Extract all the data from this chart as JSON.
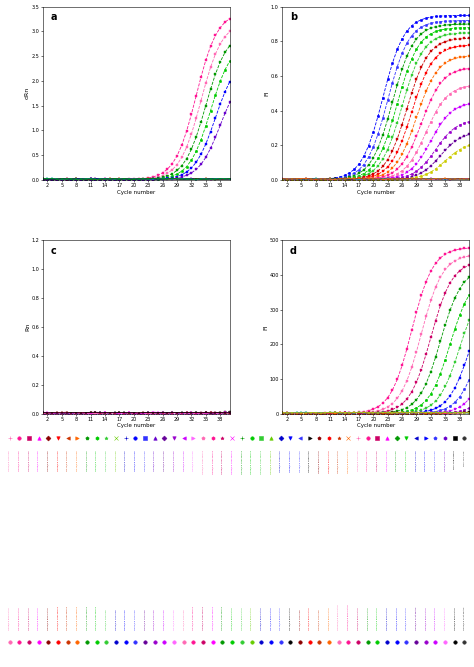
{
  "panel_a": {
    "label": "a",
    "ylabel": "dRn",
    "xlabel": "Cycle number",
    "ylim": [
      0.0,
      3.5
    ],
    "yticks": [
      0.0,
      0.5,
      1.0,
      1.5,
      2.0,
      2.5,
      3.0,
      3.5
    ],
    "xticks": [
      2,
      5,
      8,
      11,
      14,
      17,
      20,
      23,
      26,
      29,
      32,
      35,
      38
    ],
    "series": [
      {
        "color": "#FF1493",
        "midpoint": 33,
        "amplitude": 3.4,
        "marker": "s"
      },
      {
        "color": "#FF69B4",
        "midpoint": 34,
        "amplitude": 3.2,
        "marker": "s"
      },
      {
        "color": "#009900",
        "midpoint": 35,
        "amplitude": 3.0,
        "marker": "s"
      },
      {
        "color": "#00CC00",
        "midpoint": 36,
        "amplitude": 2.8,
        "marker": "o"
      },
      {
        "color": "#0000FF",
        "midpoint": 37,
        "amplitude": 2.5,
        "marker": "s"
      },
      {
        "color": "#6600CC",
        "midpoint": 38,
        "amplitude": 2.2,
        "marker": "s"
      }
    ],
    "flat_series": [
      {
        "color": "#CC00CC",
        "marker": "+"
      },
      {
        "color": "#FF00FF",
        "marker": "+"
      },
      {
        "color": "#CC0066",
        "marker": "+"
      },
      {
        "color": "#990099",
        "marker": "+"
      },
      {
        "color": "#FF6600",
        "marker": "+"
      },
      {
        "color": "#CC3300",
        "marker": "+"
      },
      {
        "color": "#8B0000",
        "marker": "+"
      },
      {
        "color": "#000000",
        "marker": "+"
      },
      {
        "color": "#333333",
        "marker": "+"
      },
      {
        "color": "#0000AA",
        "marker": "+"
      },
      {
        "color": "#00AAAA",
        "marker": "+"
      },
      {
        "color": "#008800",
        "marker": "+"
      }
    ]
  },
  "panel_b": {
    "label": "b",
    "ylabel": "Fl",
    "xlabel": "Cycle number",
    "ylim": [
      0.0,
      1.0
    ],
    "yticks": [
      0.0,
      0.2,
      0.4,
      0.6,
      0.8,
      1.0
    ],
    "xticks": [
      2,
      5,
      8,
      11,
      14,
      17,
      20,
      23,
      26,
      29,
      32,
      35,
      38
    ],
    "series": [
      {
        "color": "#0000FF",
        "midpoint": 22,
        "amplitude": 0.95,
        "marker": "o"
      },
      {
        "color": "#3333FF",
        "midpoint": 23,
        "amplitude": 0.92,
        "marker": "o"
      },
      {
        "color": "#009900",
        "midpoint": 24,
        "amplitude": 0.9,
        "marker": "s"
      },
      {
        "color": "#00CC00",
        "midpoint": 25,
        "amplitude": 0.88,
        "marker": "o"
      },
      {
        "color": "#33CC33",
        "midpoint": 26,
        "amplitude": 0.85,
        "marker": "s"
      },
      {
        "color": "#CC0000",
        "midpoint": 27,
        "amplitude": 0.82,
        "marker": "s"
      },
      {
        "color": "#FF0000",
        "midpoint": 28,
        "amplitude": 0.78,
        "marker": "s"
      },
      {
        "color": "#FF6600",
        "midpoint": 29,
        "amplitude": 0.72,
        "marker": "s"
      },
      {
        "color": "#FF1493",
        "midpoint": 30,
        "amplitude": 0.65,
        "marker": "s"
      },
      {
        "color": "#FF69B4",
        "midpoint": 31,
        "amplitude": 0.55,
        "marker": "o"
      },
      {
        "color": "#CC00FF",
        "midpoint": 32,
        "amplitude": 0.45,
        "marker": "s"
      },
      {
        "color": "#9900CC",
        "midpoint": 33,
        "amplitude": 0.35,
        "marker": "o"
      },
      {
        "color": "#660099",
        "midpoint": 34,
        "amplitude": 0.28,
        "marker": "s"
      },
      {
        "color": "#CCCC00",
        "midpoint": 35,
        "amplitude": 0.22,
        "marker": "o"
      }
    ],
    "flat_series": [
      {
        "color": "#CC00CC",
        "marker": "+"
      },
      {
        "color": "#FF00FF",
        "marker": "+"
      },
      {
        "color": "#8B0000",
        "marker": "+"
      },
      {
        "color": "#000000",
        "marker": "+"
      },
      {
        "color": "#00AAAA",
        "marker": "+"
      },
      {
        "color": "#FF6600",
        "marker": "+"
      }
    ]
  },
  "panel_c": {
    "label": "c",
    "ylabel": "Rn",
    "xlabel": "Cycle number",
    "ylim": [
      0.0,
      1.2
    ],
    "yticks": [
      0.0,
      0.2,
      0.4,
      0.6,
      0.8,
      1.0,
      1.2
    ],
    "xticks": [
      2,
      5,
      8,
      11,
      14,
      17,
      20,
      23,
      26,
      29,
      32,
      35,
      38
    ],
    "series": [
      {
        "color": "#000000",
        "midpoint": 50,
        "amplitude": 1.2,
        "marker": "s"
      },
      {
        "color": "#FF1493",
        "midpoint": 52,
        "amplitude": 1.2,
        "marker": "s"
      },
      {
        "color": "#CC0066",
        "midpoint": 54,
        "amplitude": 1.2,
        "marker": "s"
      },
      {
        "color": "#009900",
        "midpoint": 56,
        "amplitude": 1.2,
        "marker": "s"
      },
      {
        "color": "#00CC00",
        "midpoint": 58,
        "amplitude": 1.2,
        "marker": "o"
      },
      {
        "color": "#33CC33",
        "midpoint": 60,
        "amplitude": 1.2,
        "marker": "s"
      },
      {
        "color": "#0000FF",
        "midpoint": 62,
        "amplitude": 1.2,
        "marker": "s"
      },
      {
        "color": "#3333FF",
        "midpoint": 64,
        "amplitude": 1.2,
        "marker": "o"
      },
      {
        "color": "#CC00FF",
        "midpoint": 66,
        "amplitude": 1.2,
        "marker": "s"
      },
      {
        "color": "#FF69B4",
        "midpoint": 68,
        "amplitude": 1.2,
        "marker": "s"
      }
    ],
    "flat_series": [
      {
        "color": "#CC00CC",
        "marker": "+"
      },
      {
        "color": "#FF00FF",
        "marker": "+"
      },
      {
        "color": "#8B0000",
        "marker": "+"
      },
      {
        "color": "#000000",
        "marker": "+"
      }
    ]
  },
  "panel_d": {
    "label": "d",
    "ylabel": "Fl",
    "xlabel": "Cycle number",
    "ylim": [
      0.0,
      500
    ],
    "yticks": [
      0,
      100,
      200,
      300,
      400,
      500
    ],
    "xticks": [
      2,
      5,
      8,
      11,
      14,
      17,
      20,
      23,
      26,
      29,
      32,
      35,
      38
    ],
    "series": [
      {
        "color": "#FF1493",
        "midpoint": 28,
        "amplitude": 480,
        "marker": "s"
      },
      {
        "color": "#FF69B4",
        "midpoint": 30,
        "amplitude": 460,
        "marker": "s"
      },
      {
        "color": "#CC0066",
        "midpoint": 32,
        "amplitude": 440,
        "marker": "s"
      },
      {
        "color": "#009900",
        "midpoint": 34,
        "amplitude": 420,
        "marker": "s"
      },
      {
        "color": "#00CC00",
        "midpoint": 36,
        "amplitude": 400,
        "marker": "o"
      },
      {
        "color": "#33CC33",
        "midpoint": 38,
        "amplitude": 380,
        "marker": "s"
      },
      {
        "color": "#0000FF",
        "midpoint": 40,
        "amplitude": 360,
        "marker": "s"
      },
      {
        "color": "#3333FF",
        "midpoint": 42,
        "amplitude": 340,
        "marker": "o"
      },
      {
        "color": "#CC00FF",
        "midpoint": 44,
        "amplitude": 300,
        "marker": "s"
      },
      {
        "color": "#9900CC",
        "midpoint": 46,
        "amplitude": 250,
        "marker": "o"
      },
      {
        "color": "#000000",
        "midpoint": 48,
        "amplitude": 200,
        "marker": "s"
      },
      {
        "color": "#FF6600",
        "midpoint": 50,
        "amplitude": 150,
        "marker": "s"
      }
    ],
    "flat_series": [
      {
        "color": "#CC00CC",
        "marker": "+"
      },
      {
        "color": "#8B0000",
        "marker": "+"
      },
      {
        "color": "#00AAAA",
        "marker": "+"
      },
      {
        "color": "#CCCC00",
        "marker": "+"
      }
    ]
  },
  "legend_row1_items": [
    {
      "label": "G161/18 Ven-Cy5",
      "color": "#FF69B4",
      "marker": "+"
    },
    {
      "label": "G162/18 Ven-Cy5",
      "color": "#FF1493",
      "marker": "o"
    },
    {
      "label": "G164/18 Ven-Cy5",
      "color": "#CC0066",
      "marker": "s"
    },
    {
      "label": "G165/18 Ven-Cy5",
      "color": "#FF00FF",
      "marker": "^"
    },
    {
      "label": "G166/18 Ven-Cy5",
      "color": "#8B0000",
      "marker": "D"
    },
    {
      "label": "G168/18 Ven-Cy5",
      "color": "#FF0000",
      "marker": "v"
    },
    {
      "label": "G171/18 Ven-Cy5",
      "color": "#CC3300",
      "marker": "<"
    },
    {
      "label": "G172/18 Ven-Cy5",
      "color": "#FF6600",
      "marker": ">"
    },
    {
      "label": "G300/18 Ven-Cy5",
      "color": "#009900",
      "marker": "p"
    },
    {
      "label": "G302/18 Ven-Cy5",
      "color": "#00CC00",
      "marker": "h"
    },
    {
      "label": "G303/18 Ven-Cy5",
      "color": "#33CC33",
      "marker": "*"
    },
    {
      "label": "G353/18 Ven-Cy5",
      "color": "#66CC00",
      "marker": "x"
    },
    {
      "label": "G400/18 Ven-Cy5",
      "color": "#0000CC",
      "marker": "+"
    },
    {
      "label": "G404/18 Ven-Cy5",
      "color": "#0000FF",
      "marker": "o"
    },
    {
      "label": "G406/18 Ven-Cy5",
      "color": "#3333FF",
      "marker": "s"
    },
    {
      "label": "G408/18 Ven-Cy5",
      "color": "#6600CC",
      "marker": "^"
    },
    {
      "label": "G420/18 Ven-Cy5",
      "color": "#660099",
      "marker": "D"
    },
    {
      "label": "G461/18 Ven-Cy5",
      "color": "#9900CC",
      "marker": "v"
    },
    {
      "label": "G463/18 Ven-Cy5",
      "color": "#CC00FF",
      "marker": "<"
    },
    {
      "label": "G464/18 Ven-Cy5",
      "color": "#FF66FF",
      "marker": ">"
    },
    {
      "label": "G293/18 CoB-Tamra",
      "color": "#FF69B4",
      "marker": "p"
    },
    {
      "label": "G296/18 CoB-Tamra",
      "color": "#FF1493",
      "marker": "h"
    },
    {
      "label": "G298/18 CoB-Tamra",
      "color": "#CC0066",
      "marker": "*"
    },
    {
      "label": "G299/18 CoB-Tamra",
      "color": "#FF00FF",
      "marker": "x"
    },
    {
      "label": "G303/18 CoB-Tamra",
      "color": "#009900",
      "marker": "+"
    },
    {
      "label": "G305/18 CoB-Tamra",
      "color": "#00CC00",
      "marker": "o"
    },
    {
      "label": "G334/18 CoB-Tamra",
      "color": "#33CC33",
      "marker": "s"
    },
    {
      "label": "G353/18 CoB-Tamra",
      "color": "#66CC00",
      "marker": "^"
    },
    {
      "label": "G335/18 CoB-FAM",
      "color": "#0000CC",
      "marker": "D"
    },
    {
      "label": "G338/18 CoB-FAM",
      "color": "#0000FF",
      "marker": "v"
    },
    {
      "label": "G345/18 CoB-FAM",
      "color": "#3333FF",
      "marker": "<"
    },
    {
      "label": "G350/18 CoB-FAM",
      "color": "#000000",
      "marker": ">"
    },
    {
      "label": "G285/18 Boas-FAM",
      "color": "#8B0000",
      "marker": "p"
    },
    {
      "label": "G288/18 Boas-FAM",
      "color": "#FF0000",
      "marker": "h"
    },
    {
      "label": "G293/18 Boas-FAM",
      "color": "#CC3300",
      "marker": "*"
    },
    {
      "label": "G294/18 Boas-FAM",
      "color": "#FF6600",
      "marker": "x"
    },
    {
      "label": "G296/18 Ven-Cy5",
      "color": "#FF69B4",
      "marker": "+"
    },
    {
      "label": "G297/18 Ven-Cy5",
      "color": "#FF1493",
      "marker": "o"
    },
    {
      "label": "G298/18 Ven-Cy5",
      "color": "#CC0066",
      "marker": "s"
    },
    {
      "label": "G300/18 Ven-Cy5",
      "color": "#FF00FF",
      "marker": "^"
    },
    {
      "label": "G302/18 Ven-Cy5",
      "color": "#009900",
      "marker": "D"
    },
    {
      "label": "G303/18 Ven-Cy5",
      "color": "#00CC00",
      "marker": "v"
    },
    {
      "label": "G321/18 Ven-Cy5",
      "color": "#0000CC",
      "marker": "<"
    },
    {
      "label": "G322/18 Ven-Cy5",
      "color": "#0000FF",
      "marker": ">"
    },
    {
      "label": "G331/18 Ven-Cy5",
      "color": "#3333FF",
      "marker": "p"
    },
    {
      "label": "G334/18 Ven-Cy5",
      "color": "#6600CC",
      "marker": "h"
    },
    {
      "label": "NTC CoB-Tamra",
      "color": "#000000",
      "marker": "s"
    },
    {
      "label": "NTC Ven-Cy5",
      "color": "#333333",
      "marker": "o"
    }
  ],
  "legend_row2_items": [
    {
      "label": "G268/18 Boas-FAM",
      "color": "#FF69B4",
      "marker": "o"
    },
    {
      "label": "G270/18 Boas-FAM",
      "color": "#FF1493",
      "marker": "o"
    },
    {
      "label": "G277/18 Boas-FAM",
      "color": "#CC0066",
      "marker": "o"
    },
    {
      "label": "G302/18 Boas-FAM",
      "color": "#FF00FF",
      "marker": "o"
    },
    {
      "label": "G303/18 Boas-FAM",
      "color": "#8B0000",
      "marker": "o"
    },
    {
      "label": "G303/18 CoB-Tamra",
      "color": "#FF0000",
      "marker": "o"
    },
    {
      "label": "G273/18 CoB-Tamra",
      "color": "#CC3300",
      "marker": "o"
    },
    {
      "label": "G275/18 CoB-Tamra",
      "color": "#FF6600",
      "marker": "o"
    },
    {
      "label": "G277/18 CoB-Tamra",
      "color": "#009900",
      "marker": "o"
    },
    {
      "label": "G302/18 CoB-Tamra",
      "color": "#00CC00",
      "marker": "o"
    },
    {
      "label": "G303/18 Ven-Cy5",
      "color": "#33CC33",
      "marker": "o"
    },
    {
      "label": "G302/18 Ven-Cy5",
      "color": "#0000CC",
      "marker": "o"
    },
    {
      "label": "G303/18 Ven-Cy5",
      "color": "#0000FF",
      "marker": "o"
    },
    {
      "label": "G321/18 Ven-Cy5",
      "color": "#3333FF",
      "marker": "o"
    },
    {
      "label": "G161/18 Ven-Cy5",
      "color": "#660099",
      "marker": "o"
    },
    {
      "label": "G164/18 Ven-Cy5",
      "color": "#9900CC",
      "marker": "o"
    },
    {
      "label": "G168/18 Ven-Cy5",
      "color": "#CC00FF",
      "marker": "o"
    },
    {
      "label": "G171/18 Ven-Cy5",
      "color": "#FF66FF",
      "marker": "o"
    },
    {
      "label": "G172/18 Ven-Cy5",
      "color": "#FF69B4",
      "marker": "o"
    },
    {
      "label": "G274/18 CoB-Tamra",
      "color": "#FF1493",
      "marker": "o"
    },
    {
      "label": "G285/18 CoB-Tamra",
      "color": "#CC0066",
      "marker": "o"
    },
    {
      "label": "G300/18 CoB-Tamra",
      "color": "#FF00FF",
      "marker": "o"
    },
    {
      "label": "G161/18 CoB-Tamra",
      "color": "#009900",
      "marker": "o"
    },
    {
      "label": "G162/18 Boas-FAM",
      "color": "#00CC00",
      "marker": "o"
    },
    {
      "label": "G164/18 Boas-FAM",
      "color": "#33CC33",
      "marker": "o"
    },
    {
      "label": "G165/18 Boas-FAM",
      "color": "#66CC00",
      "marker": "o"
    },
    {
      "label": "G168/18 Boas-FAM",
      "color": "#0000CC",
      "marker": "o"
    },
    {
      "label": "G171/18 Boas-FAM",
      "color": "#0000FF",
      "marker": "o"
    },
    {
      "label": "G172/18 Boas-FAM",
      "color": "#3333FF",
      "marker": "o"
    },
    {
      "label": "G174/18 Boas-FAM",
      "color": "#000000",
      "marker": "o"
    },
    {
      "label": "G174/18 Ven-Cy5",
      "color": "#8B0000",
      "marker": "o"
    },
    {
      "label": "G173/18 Boas-FAM",
      "color": "#FF0000",
      "marker": "o"
    },
    {
      "label": "G162/18 Ven-Cy5",
      "color": "#CC3300",
      "marker": "o"
    },
    {
      "label": "G163/18 Boas-FAM",
      "color": "#FF6600",
      "marker": "o"
    },
    {
      "label": "G16401/18 Boas-FAM",
      "color": "#FF69B4",
      "marker": "o"
    },
    {
      "label": "G16402/18 Boas-FAM",
      "color": "#FF1493",
      "marker": "o"
    },
    {
      "label": "G400/18 Boas-FAM",
      "color": "#CC0066",
      "marker": "o"
    },
    {
      "label": "G401/18 Boas-FAM",
      "color": "#009900",
      "marker": "o"
    },
    {
      "label": "G402/18 Boas-FAM",
      "color": "#00CC00",
      "marker": "o"
    },
    {
      "label": "G403/18 Boas-FAM",
      "color": "#0000CC",
      "marker": "o"
    },
    {
      "label": "G404/18 Boas-FAM",
      "color": "#0000FF",
      "marker": "o"
    },
    {
      "label": "G405/18 Boas-FAM",
      "color": "#3333FF",
      "marker": "o"
    },
    {
      "label": "G405/18 Scot-pFAM",
      "color": "#660099",
      "marker": "o"
    },
    {
      "label": "G406/18 Boas-FAM",
      "color": "#9900CC",
      "marker": "o"
    },
    {
      "label": "G407/18 Boas-FAM",
      "color": "#CC00FF",
      "marker": "o"
    },
    {
      "label": "G408/18 Boas-FAM",
      "color": "#FF66FF",
      "marker": "o"
    },
    {
      "label": "G409/18 Boas-FAM",
      "color": "#000000",
      "marker": "o"
    },
    {
      "label": "G409/18 Scot-pFAM",
      "color": "#333333",
      "marker": "o"
    }
  ]
}
